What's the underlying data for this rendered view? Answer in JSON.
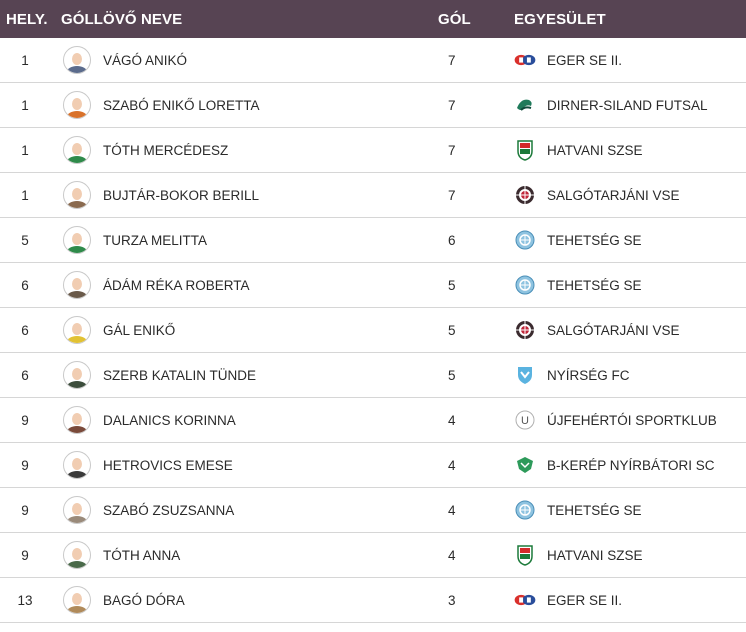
{
  "header": {
    "rank": "HELY.",
    "name": "GÓLLÖVŐ NEVE",
    "goals": "GÓL",
    "club": "EGYESÜLET"
  },
  "rows": [
    {
      "rank": "1",
      "name": "VÁGÓ ANIKÓ",
      "goals": "7",
      "club": "EGER SE II.",
      "club_icon": "eger-logo-icon"
    },
    {
      "rank": "1",
      "name": "SZABÓ ENIKŐ LORETTA",
      "goals": "7",
      "club": "DIRNER-SILAND FUTSAL",
      "club_icon": "dirner-siland-logo-icon"
    },
    {
      "rank": "1",
      "name": "TÓTH MERCÉDESZ",
      "goals": "7",
      "club": "HATVANI SZSE",
      "club_icon": "hatvani-logo-icon"
    },
    {
      "rank": "1",
      "name": "BUJTÁR-BOKOR BERILL",
      "goals": "7",
      "club": "SALGÓTARJÁNI VSE",
      "club_icon": "salgotarjani-logo-icon"
    },
    {
      "rank": "5",
      "name": "TURZA MELITTA",
      "goals": "6",
      "club": "TEHETSÉG SE",
      "club_icon": "tehetseg-logo-icon"
    },
    {
      "rank": "6",
      "name": "ÁDÁM RÉKA ROBERTA",
      "goals": "5",
      "club": "TEHETSÉG SE",
      "club_icon": "tehetseg-logo-icon"
    },
    {
      "rank": "6",
      "name": "GÁL ENIKŐ",
      "goals": "5",
      "club": "SALGÓTARJÁNI VSE",
      "club_icon": "salgotarjani-logo-icon"
    },
    {
      "rank": "6",
      "name": "SZERB KATALIN TÜNDE",
      "goals": "5",
      "club": "NYÍRSÉG FC",
      "club_icon": "nyirseg-logo-icon"
    },
    {
      "rank": "9",
      "name": "DALANICS KORINNA",
      "goals": "4",
      "club": "ÚJFEHÉRTÓI SPORTKLUB",
      "club_icon": "ujfeherto-logo-icon"
    },
    {
      "rank": "9",
      "name": "HETROVICS EMESE",
      "goals": "4",
      "club": "B-KERÉP NYÍRBÁTORI SC",
      "club_icon": "nyirbator-logo-icon"
    },
    {
      "rank": "9",
      "name": "SZABÓ ZSUZSANNA",
      "goals": "4",
      "club": "TEHETSÉG SE",
      "club_icon": "tehetseg-logo-icon"
    },
    {
      "rank": "9",
      "name": "TÓTH ANNA",
      "goals": "4",
      "club": "HATVANI SZSE",
      "club_icon": "hatvani-logo-icon"
    },
    {
      "rank": "13",
      "name": "BAGÓ DÓRA",
      "goals": "3",
      "club": "EGER SE II.",
      "club_icon": "eger-logo-icon"
    }
  ],
  "colors": {
    "header_bg": "#574453",
    "header_text": "#ffffff",
    "row_border": "#d6d6d6"
  }
}
